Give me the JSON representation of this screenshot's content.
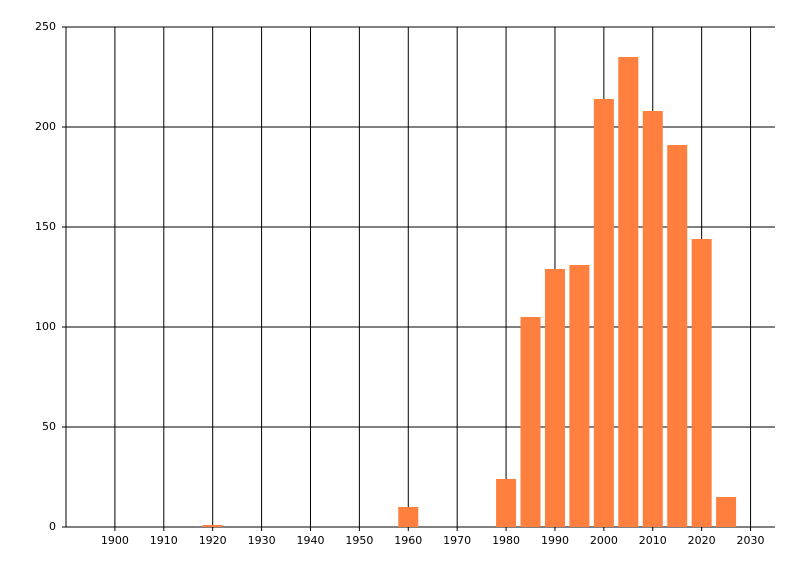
{
  "chart_data": {
    "type": "bar",
    "x": [
      1920,
      1960,
      1980,
      1985,
      1990,
      1995,
      2000,
      2005,
      2010,
      2015,
      2020,
      2025
    ],
    "values": [
      1,
      10,
      24,
      105,
      129,
      131,
      214,
      235,
      208,
      191,
      144,
      15
    ],
    "color": "#ff7f3f",
    "xlim": [
      1890,
      2035
    ],
    "xticks": [
      1900,
      1910,
      1920,
      1930,
      1940,
      1950,
      1960,
      1970,
      1980,
      1990,
      2000,
      2010,
      2020,
      2030
    ],
    "ylim": [
      0,
      250
    ],
    "yticks": [
      0,
      50,
      100,
      150,
      200,
      250
    ],
    "grid": true
  }
}
